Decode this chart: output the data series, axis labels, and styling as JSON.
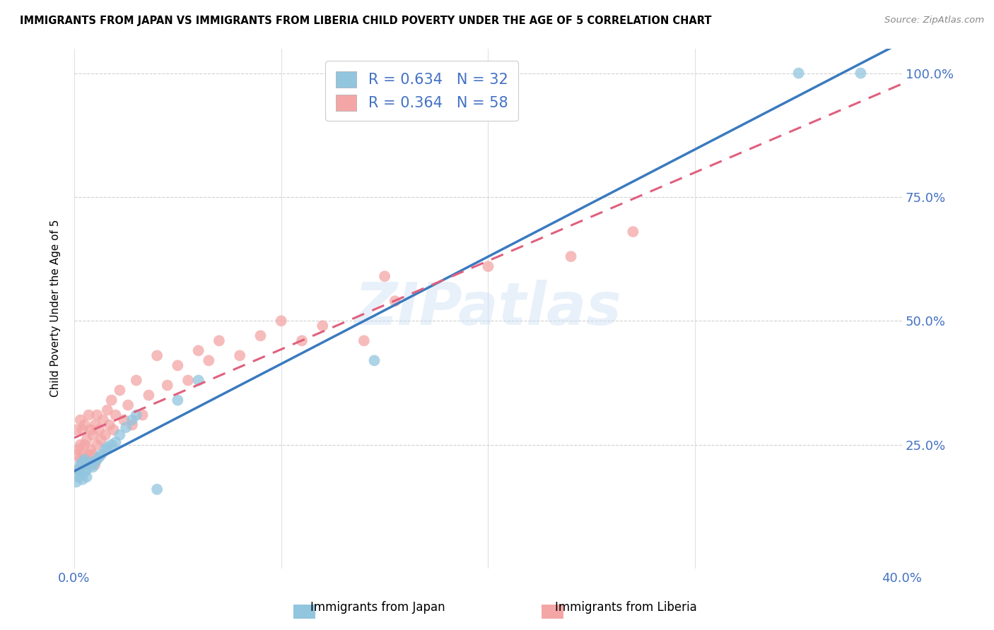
{
  "title": "IMMIGRANTS FROM JAPAN VS IMMIGRANTS FROM LIBERIA CHILD POVERTY UNDER THE AGE OF 5 CORRELATION CHART",
  "source": "Source: ZipAtlas.com",
  "xlabel_japan": "Immigrants from Japan",
  "xlabel_liberia": "Immigrants from Liberia",
  "ylabel": "Child Poverty Under the Age of 5",
  "xlim": [
    0.0,
    0.4
  ],
  "ylim": [
    0.0,
    1.05
  ],
  "yticks": [
    0.25,
    0.5,
    0.75,
    1.0
  ],
  "ytick_labels": [
    "25.0%",
    "50.0%",
    "75.0%",
    "100.0%"
  ],
  "xticks": [
    0.0,
    0.1,
    0.2,
    0.3,
    0.4
  ],
  "xtick_labels": [
    "0.0%",
    "",
    "",
    "",
    "40.0%"
  ],
  "japan_color": "#92c5de",
  "liberia_color": "#f4a6a6",
  "japan_line_color": "#3a7abf",
  "liberia_line_color": "#e0607e",
  "R_japan": 0.634,
  "N_japan": 32,
  "R_liberia": 0.364,
  "N_liberia": 58,
  "watermark": "ZIPatlas",
  "japan_x": [
    0.001,
    0.002,
    0.002,
    0.003,
    0.003,
    0.004,
    0.004,
    0.005,
    0.005,
    0.006,
    0.006,
    0.007,
    0.008,
    0.009,
    0.01,
    0.011,
    0.012,
    0.013,
    0.015,
    0.016,
    0.018,
    0.02,
    0.022,
    0.025,
    0.028,
    0.03,
    0.04,
    0.05,
    0.06,
    0.145,
    0.35,
    0.38
  ],
  "japan_y": [
    0.175,
    0.2,
    0.185,
    0.19,
    0.21,
    0.18,
    0.215,
    0.195,
    0.22,
    0.185,
    0.2,
    0.215,
    0.21,
    0.205,
    0.215,
    0.22,
    0.225,
    0.23,
    0.24,
    0.245,
    0.25,
    0.255,
    0.27,
    0.285,
    0.3,
    0.31,
    0.16,
    0.34,
    0.38,
    0.42,
    1.0,
    1.0
  ],
  "liberia_x": [
    0.001,
    0.001,
    0.002,
    0.002,
    0.003,
    0.003,
    0.003,
    0.004,
    0.004,
    0.005,
    0.005,
    0.005,
    0.006,
    0.006,
    0.007,
    0.007,
    0.008,
    0.008,
    0.009,
    0.009,
    0.01,
    0.01,
    0.011,
    0.011,
    0.012,
    0.013,
    0.014,
    0.015,
    0.016,
    0.017,
    0.018,
    0.019,
    0.02,
    0.022,
    0.024,
    0.026,
    0.028,
    0.03,
    0.033,
    0.036,
    0.04,
    0.045,
    0.05,
    0.055,
    0.06,
    0.065,
    0.07,
    0.08,
    0.09,
    0.1,
    0.11,
    0.12,
    0.14,
    0.15,
    0.155,
    0.2,
    0.24,
    0.27
  ],
  "liberia_y": [
    0.23,
    0.28,
    0.2,
    0.24,
    0.22,
    0.25,
    0.3,
    0.23,
    0.28,
    0.21,
    0.25,
    0.29,
    0.22,
    0.26,
    0.23,
    0.31,
    0.24,
    0.28,
    0.23,
    0.27,
    0.21,
    0.29,
    0.31,
    0.25,
    0.28,
    0.26,
    0.3,
    0.27,
    0.32,
    0.29,
    0.34,
    0.28,
    0.31,
    0.36,
    0.3,
    0.33,
    0.29,
    0.38,
    0.31,
    0.35,
    0.43,
    0.37,
    0.41,
    0.38,
    0.44,
    0.42,
    0.46,
    0.43,
    0.47,
    0.5,
    0.46,
    0.49,
    0.46,
    0.59,
    0.54,
    0.61,
    0.63,
    0.68
  ]
}
